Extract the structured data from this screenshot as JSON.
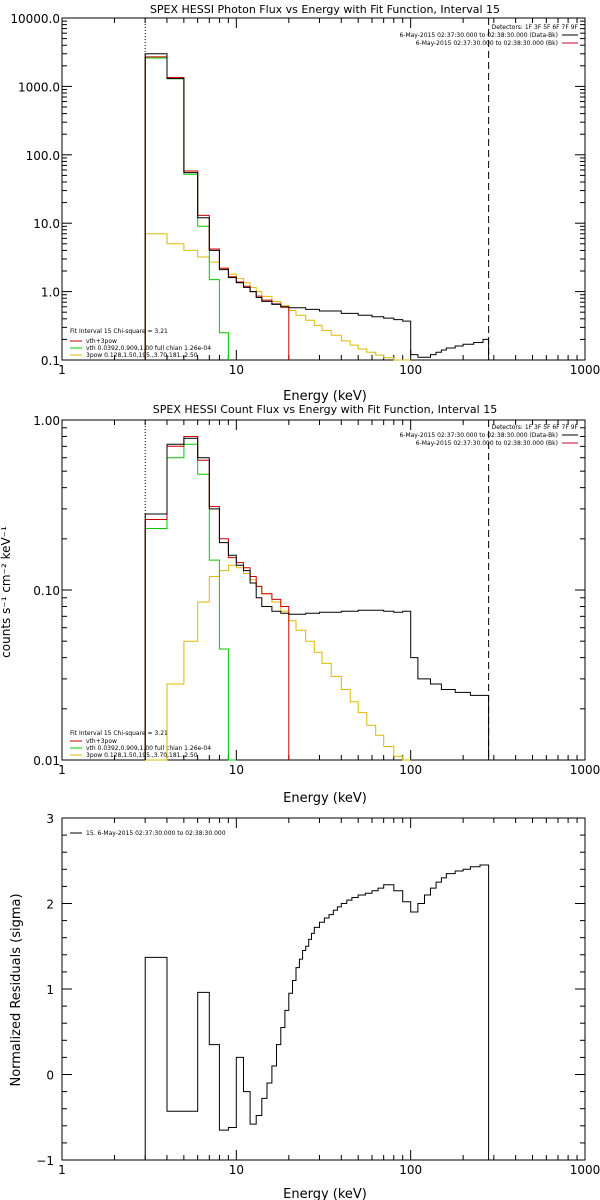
{
  "panels": [
    {
      "title": "SPEX HESSI Photon Flux vs Energy with Fit Function, Interval 15",
      "xlabel": "Energy (keV)",
      "ylabel": "",
      "detectors": "Detectors: 1F 3F 5F 6F 7F 9F",
      "times": [
        "6-May-2015 02:37:30.000 to 02:38:30.000 (Data-Bk)",
        "6-May-2015 02:37:30.000 to 02:38:30.000 (Bk)"
      ],
      "fit_info": "Fit Interval 15   Chi-square = 3.21",
      "legend": [
        "vth+3pow",
        "vth 0.0392,0.909,1.00   full chian 1.26e-04",
        "3pow 0.128,1.50,195.,3.70,181.,2.50"
      ],
      "y_ticks": [
        "0.1",
        "1.0",
        "10.0",
        "100.0",
        "1000.0",
        "10000.0"
      ],
      "x_ticks": [
        "1",
        "10",
        "100",
        "1000"
      ]
    },
    {
      "title": "SPEX HESSI Count Flux vs Energy with Fit Function, Interval 15",
      "xlabel": "Energy (keV)",
      "ylabel": "counts s⁻¹ cm⁻² keV⁻¹",
      "detectors": "Detectors: 1F 3F 5F 6F 7F 9F",
      "times": [
        "6-May-2015 02:37:30.000 to 02:38:30.000 (Data-Bk)",
        "6-May-2015 02:37:30.000 to 02:38:30.000 (Bk)"
      ],
      "fit_info": "Fit Interval 15   Chi-square = 3.21",
      "legend": [
        "vth+3pow",
        "vth 0.0392,0.909,1.00   full chian 1.26e-04",
        "3pow 0.128,1.50,195.,3.70,181.,2.50"
      ],
      "y_ticks": [
        "0.01",
        "0.10",
        "1.00"
      ],
      "x_ticks": [
        "1",
        "10",
        "100",
        "1000"
      ]
    },
    {
      "title": "",
      "xlabel": "Energy (keV)",
      "ylabel": "Normalized Residuals (sigma)",
      "legend": [
        "15.  6-May-2015 02:37:30.000 to 02:38:30.000"
      ],
      "y_ticks": [
        "−1",
        "0",
        "1",
        "2",
        "3"
      ],
      "x_ticks": [
        "1",
        "10",
        "100",
        "1000"
      ]
    }
  ],
  "colors": {
    "data": "#000000",
    "total": "#cc0000",
    "vth": "#00cc00",
    "pow": "#ddbb00",
    "marker": "#000000"
  },
  "chart_data": [
    {
      "type": "line",
      "title": "SPEX HESSI Photon Flux vs Energy with Fit Function, Interval 15",
      "xlabel": "Energy (keV)",
      "xscale": "log",
      "yscale": "log",
      "xlim": [
        1,
        1000
      ],
      "ylim": [
        0.1,
        10000
      ],
      "markers": {
        "dotted_x": 3,
        "dashed_x": 280
      },
      "series": [
        {
          "name": "Data-Bk",
          "color": "#000000",
          "edges": [
            3,
            4,
            5,
            6,
            7,
            8,
            9,
            10,
            11,
            12,
            13,
            14,
            16,
            18,
            20,
            25,
            30,
            40,
            50,
            60,
            70,
            80,
            90,
            100,
            110,
            120,
            130,
            140,
            150,
            160,
            180,
            200,
            230,
            260,
            280
          ],
          "values": [
            3000,
            1300,
            55,
            12,
            4,
            2.1,
            1.6,
            1.35,
            1.15,
            1.0,
            0.82,
            0.72,
            0.65,
            0.6,
            0.58,
            0.55,
            0.52,
            0.48,
            0.45,
            0.43,
            0.41,
            0.39,
            0.37,
            0.12,
            0.11,
            0.11,
            0.12,
            0.13,
            0.14,
            0.15,
            0.16,
            0.17,
            0.18,
            0.2
          ]
        },
        {
          "name": "vth+3pow",
          "color": "#cc0000",
          "edges": [
            3,
            4,
            5,
            6,
            7,
            8,
            9,
            10,
            11,
            12,
            13,
            14,
            16,
            18,
            20
          ],
          "values": [
            2700,
            1350,
            58,
            13,
            4.2,
            2.2,
            1.65,
            1.38,
            1.2,
            1.0,
            0.86,
            0.75,
            0.66,
            0.59
          ]
        },
        {
          "name": "vth",
          "color": "#00cc00",
          "edges": [
            3,
            4,
            5,
            6,
            7,
            8,
            9
          ],
          "values": [
            2600,
            1300,
            52,
            9,
            1.5,
            0.25
          ]
        },
        {
          "name": "3pow",
          "color": "#ddbb00",
          "edges": [
            3,
            4,
            5,
            6,
            7,
            8,
            9,
            10,
            11,
            12,
            13,
            14,
            16,
            18,
            20,
            22,
            25,
            28,
            31,
            35,
            40,
            45,
            50,
            56,
            63,
            70,
            80,
            90,
            100
          ],
          "values": [
            7,
            5,
            4,
            3.2,
            2.7,
            2.2,
            1.8,
            1.55,
            1.35,
            1.15,
            1.0,
            0.85,
            0.72,
            0.62,
            0.53,
            0.45,
            0.38,
            0.32,
            0.27,
            0.23,
            0.19,
            0.165,
            0.145,
            0.13,
            0.118,
            0.108,
            0.1,
            0.1
          ]
        }
      ]
    },
    {
      "type": "line",
      "title": "SPEX HESSI Count Flux vs Energy with Fit Function, Interval 15",
      "xlabel": "Energy (keV)",
      "ylabel": "counts s⁻¹ cm⁻² keV⁻¹",
      "xscale": "log",
      "yscale": "log",
      "xlim": [
        1,
        1000
      ],
      "ylim": [
        0.01,
        1.0
      ],
      "markers": {
        "dotted_x": 3,
        "dashed_x": 280
      },
      "series": [
        {
          "name": "Data-Bk",
          "color": "#000000",
          "edges": [
            3,
            4,
            5,
            6,
            7,
            8,
            9,
            10,
            11,
            12,
            13,
            14,
            16,
            18,
            20,
            25,
            30,
            40,
            50,
            60,
            70,
            80,
            90,
            100,
            110,
            130,
            150,
            180,
            220,
            280
          ],
          "values": [
            0.28,
            0.72,
            0.78,
            0.6,
            0.3,
            0.19,
            0.16,
            0.14,
            0.13,
            0.11,
            0.09,
            0.08,
            0.075,
            0.073,
            0.072,
            0.073,
            0.074,
            0.075,
            0.076,
            0.076,
            0.075,
            0.074,
            0.075,
            0.04,
            0.03,
            0.028,
            0.026,
            0.025,
            0.024
          ]
        },
        {
          "name": "vth+3pow",
          "color": "#cc0000",
          "edges": [
            3,
            4,
            5,
            6,
            7,
            8,
            9,
            10,
            11,
            12,
            13,
            14,
            16,
            18,
            20
          ],
          "values": [
            0.26,
            0.7,
            0.8,
            0.58,
            0.31,
            0.2,
            0.155,
            0.145,
            0.135,
            0.12,
            0.105,
            0.095,
            0.088,
            0.08
          ]
        },
        {
          "name": "vth",
          "color": "#00cc00",
          "edges": [
            3,
            4,
            5,
            6,
            7,
            8,
            9,
            10
          ],
          "values": [
            0.23,
            0.6,
            0.72,
            0.48,
            0.15,
            0.045,
            0.01
          ]
        },
        {
          "name": "3pow",
          "color": "#ddbb00",
          "edges": [
            3,
            4,
            5,
            6,
            7,
            8,
            9,
            10,
            11,
            12,
            13,
            14,
            16,
            18,
            20,
            22,
            25,
            28,
            31,
            35,
            40,
            45,
            50,
            56,
            63,
            70,
            80,
            90,
            100
          ],
          "values": [
            0.01,
            0.028,
            0.05,
            0.085,
            0.12,
            0.13,
            0.14,
            0.135,
            0.125,
            0.115,
            0.105,
            0.095,
            0.085,
            0.075,
            0.066,
            0.058,
            0.05,
            0.043,
            0.037,
            0.031,
            0.026,
            0.022,
            0.019,
            0.016,
            0.014,
            0.012,
            0.0105,
            0.01
          ]
        }
      ]
    },
    {
      "type": "line",
      "title": "",
      "xlabel": "Energy (keV)",
      "ylabel": "Normalized Residuals (sigma)",
      "xscale": "log",
      "yscale": "linear",
      "xlim": [
        1,
        1000
      ],
      "ylim": [
        -1,
        3
      ],
      "series": [
        {
          "name": "15.  6-May-2015 02:37:30.000 to 02:38:30.000",
          "color": "#000000",
          "edges": [
            3,
            4,
            5,
            6,
            7,
            8,
            9,
            10,
            11,
            12,
            13,
            14,
            15,
            16,
            17,
            18,
            19,
            20,
            21,
            22,
            23,
            24,
            25,
            26,
            27,
            28,
            30,
            32,
            34,
            36,
            38,
            40,
            43,
            46,
            50,
            55,
            60,
            65,
            70,
            80,
            90,
            100,
            110,
            120,
            130,
            140,
            150,
            160,
            180,
            200,
            220,
            250,
            280
          ],
          "values": [
            1.37,
            -0.43,
            -0.43,
            0.96,
            0.35,
            -0.65,
            -0.62,
            0.2,
            -0.2,
            -0.58,
            -0.48,
            -0.28,
            -0.1,
            0.1,
            0.35,
            0.55,
            0.75,
            0.95,
            1.1,
            1.25,
            1.35,
            1.45,
            1.5,
            1.58,
            1.65,
            1.72,
            1.78,
            1.83,
            1.87,
            1.92,
            1.96,
            2.0,
            2.04,
            2.07,
            2.1,
            2.12,
            2.15,
            2.18,
            2.22,
            2.15,
            2.02,
            1.9,
            2.0,
            2.1,
            2.18,
            2.25,
            2.3,
            2.35,
            2.38,
            2.4,
            2.43,
            2.45
          ]
        }
      ]
    }
  ]
}
